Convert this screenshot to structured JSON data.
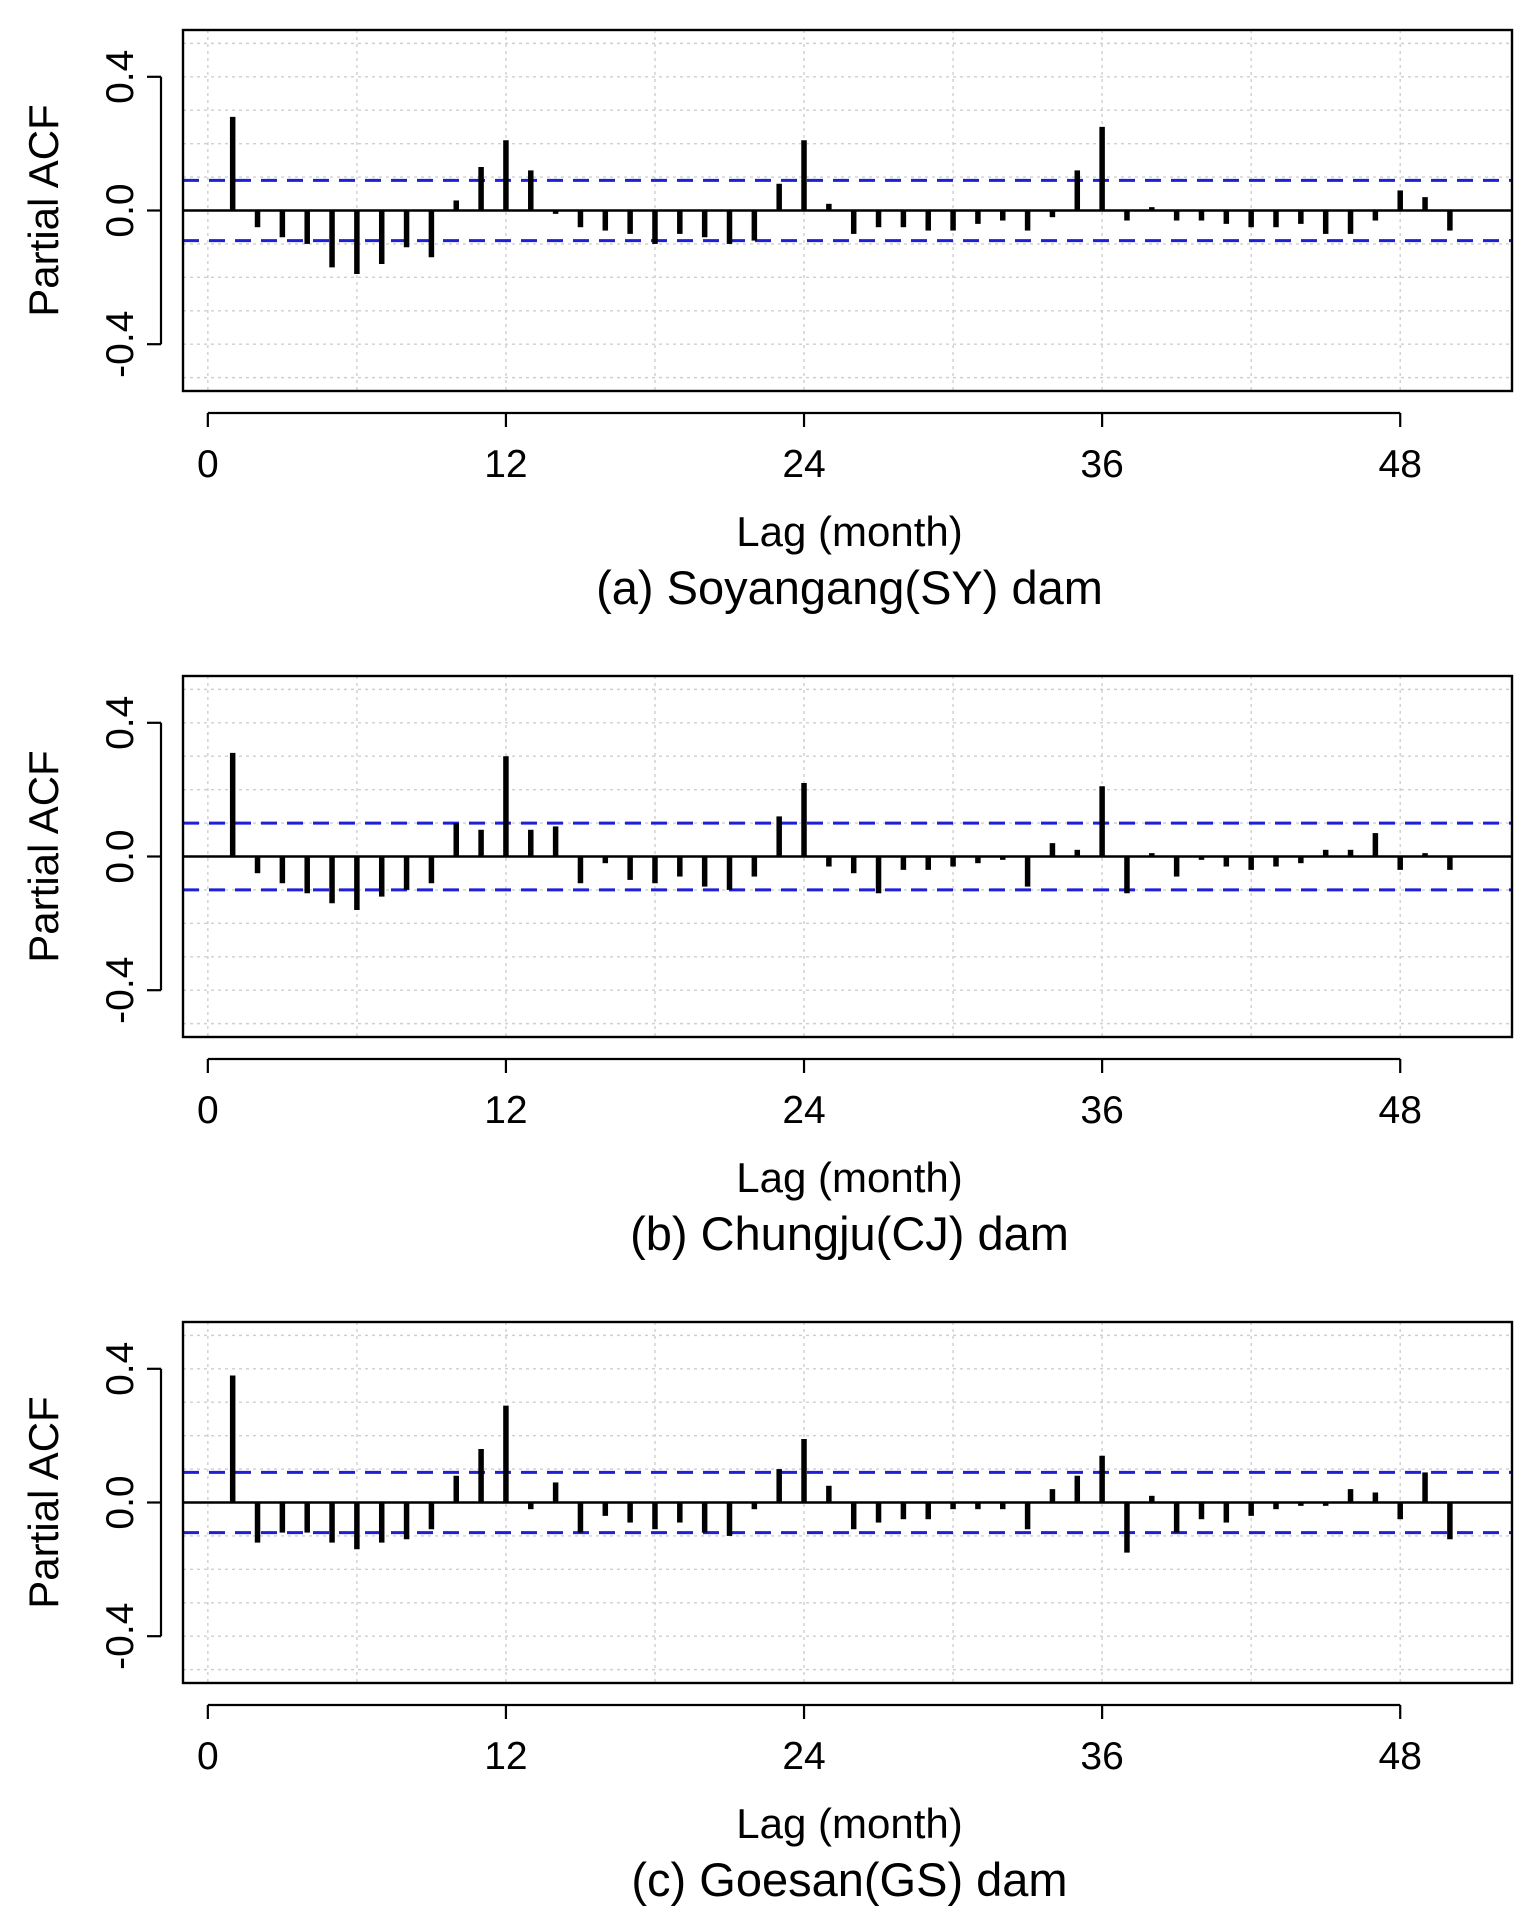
{
  "chart_data": [
    {
      "type": "bar",
      "title": "(a) Soyangang(SY) dam",
      "xlabel": "Lag (month)",
      "ylabel": "Partial ACF",
      "xlim": [
        -1,
        52.5
      ],
      "ylim": [
        -0.54,
        0.54
      ],
      "xticks": [
        0,
        12,
        24,
        36,
        48
      ],
      "yticks": [
        0.4,
        0.0,
        -0.4
      ],
      "ytick_labels": [
        "0.4",
        "0.0",
        "-0.4"
      ],
      "conf_limit": 0.09,
      "grid": true,
      "lags": [
        1,
        2,
        3,
        4,
        5,
        6,
        7,
        8,
        9,
        10,
        11,
        12,
        13,
        14,
        15,
        16,
        17,
        18,
        19,
        20,
        21,
        22,
        23,
        24,
        25,
        26,
        27,
        28,
        29,
        30,
        31,
        32,
        33,
        34,
        35,
        36,
        37,
        38,
        39,
        40,
        41,
        42,
        43,
        44,
        45,
        46,
        47,
        48,
        49,
        50,
        51
      ],
      "values": [
        0.28,
        -0.05,
        -0.08,
        -0.1,
        -0.17,
        -0.19,
        -0.16,
        -0.11,
        -0.14,
        0.03,
        0.13,
        0.21,
        0.12,
        -0.01,
        -0.05,
        -0.06,
        -0.07,
        -0.1,
        -0.07,
        -0.08,
        -0.1,
        -0.09,
        0.08,
        0.21,
        0.02,
        -0.07,
        -0.05,
        -0.05,
        -0.06,
        -0.06,
        -0.04,
        -0.03,
        -0.06,
        -0.02,
        0.12,
        0.25,
        -0.03,
        0.01,
        -0.03,
        -0.03,
        -0.04,
        -0.05,
        -0.05,
        -0.04,
        -0.07,
        -0.07,
        -0.03,
        0.06,
        0.04,
        -0.06,
        0.0
      ]
    },
    {
      "type": "bar",
      "title": "(b) Chungju(CJ) dam",
      "xlabel": "Lag (month)",
      "ylabel": "Partial ACF",
      "xlim": [
        -1,
        52.5
      ],
      "ylim": [
        -0.54,
        0.54
      ],
      "xticks": [
        0,
        12,
        24,
        36,
        48
      ],
      "yticks": [
        0.4,
        0.0,
        -0.4
      ],
      "ytick_labels": [
        "0.4",
        "0.0",
        "-0.4"
      ],
      "conf_limit": 0.1,
      "grid": true,
      "lags": [
        1,
        2,
        3,
        4,
        5,
        6,
        7,
        8,
        9,
        10,
        11,
        12,
        13,
        14,
        15,
        16,
        17,
        18,
        19,
        20,
        21,
        22,
        23,
        24,
        25,
        26,
        27,
        28,
        29,
        30,
        31,
        32,
        33,
        34,
        35,
        36,
        37,
        38,
        39,
        40,
        41,
        42,
        43,
        44,
        45,
        46,
        47,
        48,
        49,
        50,
        51
      ],
      "values": [
        0.31,
        -0.05,
        -0.08,
        -0.11,
        -0.14,
        -0.16,
        -0.12,
        -0.1,
        -0.08,
        0.1,
        0.08,
        0.3,
        0.08,
        0.09,
        -0.08,
        -0.02,
        -0.07,
        -0.08,
        -0.06,
        -0.09,
        -0.1,
        -0.06,
        0.12,
        0.22,
        -0.03,
        -0.05,
        -0.11,
        -0.04,
        -0.04,
        -0.03,
        -0.02,
        -0.01,
        -0.09,
        0.04,
        0.02,
        0.21,
        -0.11,
        0.01,
        -0.06,
        -0.01,
        -0.03,
        -0.04,
        -0.03,
        -0.02,
        0.02,
        0.02,
        0.07,
        -0.04,
        0.01,
        -0.04,
        0.0
      ]
    },
    {
      "type": "bar",
      "title": "(c) Goesan(GS) dam",
      "xlabel": "Lag (month)",
      "ylabel": "Partial ACF",
      "xlim": [
        -1,
        52.5
      ],
      "ylim": [
        -0.54,
        0.54
      ],
      "xticks": [
        0,
        12,
        24,
        36,
        48
      ],
      "yticks": [
        0.4,
        0.0,
        -0.4
      ],
      "ytick_labels": [
        "0.4",
        "0.0",
        "-0.4"
      ],
      "conf_limit": 0.09,
      "grid": true,
      "lags": [
        1,
        2,
        3,
        4,
        5,
        6,
        7,
        8,
        9,
        10,
        11,
        12,
        13,
        14,
        15,
        16,
        17,
        18,
        19,
        20,
        21,
        22,
        23,
        24,
        25,
        26,
        27,
        28,
        29,
        30,
        31,
        32,
        33,
        34,
        35,
        36,
        37,
        38,
        39,
        40,
        41,
        42,
        43,
        44,
        45,
        46,
        47,
        48,
        49,
        50,
        51
      ],
      "values": [
        0.38,
        -0.12,
        -0.09,
        -0.09,
        -0.12,
        -0.14,
        -0.12,
        -0.11,
        -0.08,
        0.08,
        0.16,
        0.29,
        -0.02,
        0.06,
        -0.09,
        -0.04,
        -0.06,
        -0.08,
        -0.06,
        -0.09,
        -0.1,
        -0.02,
        0.1,
        0.19,
        0.05,
        -0.08,
        -0.06,
        -0.05,
        -0.05,
        -0.02,
        -0.02,
        -0.02,
        -0.08,
        0.04,
        0.08,
        0.14,
        -0.15,
        0.02,
        -0.09,
        -0.05,
        -0.06,
        -0.04,
        -0.02,
        -0.01,
        -0.01,
        0.04,
        0.03,
        -0.05,
        0.09,
        -0.11,
        0.0
      ]
    }
  ]
}
